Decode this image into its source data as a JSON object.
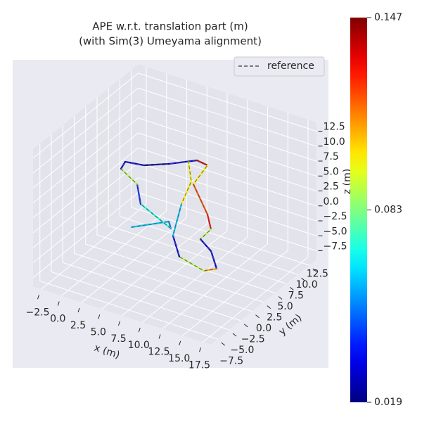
{
  "chart_data": {
    "type": "line3d",
    "title": "APE w.r.t. translation part (m)",
    "subtitle": "(with Sim(3) Umeyama alignment)",
    "xlabel": "x (m)",
    "ylabel": "y (m)",
    "zlabel": "z (m)",
    "xlim": [
      -3.5,
      18.5
    ],
    "ylim": [
      -9,
      14
    ],
    "zlim": [
      -9,
      14
    ],
    "xticks": [
      {
        "value": -2.5,
        "label": "−2.5"
      },
      {
        "value": 0,
        "label": "0.0"
      },
      2.5,
      {
        "value": 5,
        "label": "5.0"
      },
      7.5,
      {
        "value": 10,
        "label": "10.0"
      },
      12.5,
      {
        "value": 15,
        "label": "15.0"
      },
      17.5
    ],
    "yticks": [
      {
        "value": -7.5,
        "label": "−7.5"
      },
      {
        "value": -5,
        "label": "−5.0"
      },
      {
        "value": -2.5,
        "label": "−2.5"
      },
      {
        "value": 0,
        "label": "0.0"
      },
      2.5,
      {
        "value": 5,
        "label": "5.0"
      },
      7.5,
      {
        "value": 10,
        "label": "10.0"
      },
      12.5
    ],
    "zticks": [
      {
        "value": -7.5,
        "label": "−7.5"
      },
      {
        "value": -5,
        "label": "−5.0"
      },
      {
        "value": -2.5,
        "label": "−2.5"
      },
      {
        "value": 0,
        "label": "0.0"
      },
      2.5,
      {
        "value": 5,
        "label": "5.0"
      },
      7.5,
      {
        "value": 10,
        "label": "10.0"
      },
      12.5
    ],
    "grid": true,
    "legend": "upper right",
    "series": [
      {
        "name": "reference",
        "color": "#555555",
        "dash": true,
        "x": [
          4.56,
          7.23,
          8.18,
          2.83,
          0.38,
          -2.74,
          -0.52,
          1.53,
          3.55,
          5.64,
          7.11,
          5.33,
          9.87,
          11.79,
          11.93,
          14.17,
          16.58,
          15.69,
          11.99,
          9.13,
          6.43,
          4.84,
          5.05
        ],
        "y": [
          -1.72,
          1.71,
          0.49,
          3.33,
          6.91,
          8.88,
          5.89,
          6.4,
          8.22,
          10.67,
          10.39,
          10.45,
          5.5,
          2.87,
          0.31,
          -1.33,
          -4.37,
          -5.58,
          -4.41,
          -0.74,
          5.9,
          10.86,
          9.87
        ],
        "z": [
          0,
          0,
          0,
          0,
          0,
          0,
          4,
          4,
          4,
          4,
          4,
          0,
          0,
          0,
          0,
          0,
          0,
          0,
          0,
          0,
          0,
          0,
          4
        ]
      }
    ],
    "trajectory": {
      "x": [
        4.56,
        7.23,
        8.18,
        2.83,
        0.38,
        -2.74,
        -0.52,
        1.53,
        3.55,
        5.64,
        7.11,
        5.33,
        9.87,
        11.79,
        11.93,
        14.17,
        16.58,
        15.69,
        11.99,
        9.13,
        6.43,
        4.84,
        5.05
      ],
      "y": [
        -1.72,
        1.71,
        0.49,
        3.33,
        6.91,
        8.88,
        5.89,
        6.4,
        8.22,
        10.67,
        10.39,
        10.45,
        5.5,
        2.87,
        0.31,
        -1.33,
        -4.37,
        -5.58,
        -4.41,
        -0.74,
        5.9,
        10.86,
        9.87
      ],
      "z": [
        0,
        0,
        0,
        0,
        0,
        0,
        4,
        4,
        4,
        4,
        4,
        0,
        0,
        0,
        0,
        0,
        0,
        0,
        0,
        0,
        0,
        0,
        4
      ],
      "error": [
        0.06,
        0.05,
        0.07,
        0.04,
        0.09,
        0.03,
        0.03,
        0.02,
        0.03,
        0.14,
        0.1,
        0.12,
        0.13,
        0.09,
        0.03,
        0.03,
        0.11,
        0.09,
        0.03,
        0.06,
        0.1,
        0.1,
        0.13
      ]
    },
    "colorbar": {
      "colormap": "jet",
      "clim": [
        0.019,
        0.147
      ],
      "ticks": [
        0.019,
        0.083,
        0.147
      ]
    }
  }
}
